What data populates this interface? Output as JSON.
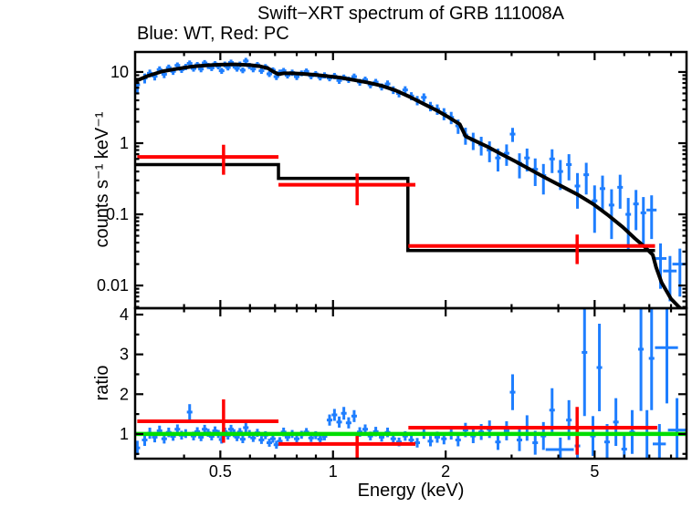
{
  "chart_data": {
    "type": "scatter",
    "title": "Swift−XRT spectrum of GRB 111008A",
    "subtitle": "Blue: WT, Red: PC",
    "xlabel": "Energy (keV)",
    "ylabel_top": "counts s⁻¹ keV⁻¹",
    "ylabel_bottom": "ratio",
    "legend": {
      "blue_series": "WT",
      "red_series": "PC"
    },
    "colors": {
      "wt": "#1e7eff",
      "pc": "#ff0000",
      "model": "#000000",
      "unity": "#00dd00",
      "frame": "#000000"
    },
    "x_axis": {
      "scale": "log",
      "min": 0.296,
      "max": 8.8,
      "major_ticks": [
        [
          0.5,
          "0.5"
        ],
        [
          1,
          "1"
        ],
        [
          2,
          "2"
        ],
        [
          5,
          "5"
        ]
      ],
      "minor_ticks": [
        0.4,
        0.6,
        0.7,
        0.8,
        0.9,
        3,
        4,
        6,
        7,
        8
      ]
    },
    "y_axis_top": {
      "scale": "log",
      "min": 0.0048,
      "max": 19.1,
      "major_ticks": [
        [
          10,
          "10"
        ],
        [
          1,
          "1"
        ],
        [
          0.1,
          "0.1"
        ],
        [
          0.01,
          "0.01"
        ]
      ]
    },
    "y_axis_bottom": {
      "scale": "linear",
      "min": 0.38,
      "max": 4.16,
      "major_ticks": [
        [
          1,
          "1"
        ],
        [
          2,
          "2"
        ],
        [
          3,
          "3"
        ],
        [
          4,
          "4"
        ]
      ],
      "minor_ticks": [
        0.5,
        1.5,
        2.5,
        3.5
      ]
    },
    "series": {
      "unity_ratio": 1.0,
      "wt_model": [
        [
          0.296,
          7.4
        ],
        [
          0.32,
          8.8
        ],
        [
          0.35,
          10.2
        ],
        [
          0.38,
          11.0
        ],
        [
          0.42,
          11.9
        ],
        [
          0.46,
          12.4
        ],
        [
          0.5,
          12.7
        ],
        [
          0.55,
          12.8
        ],
        [
          0.6,
          12.5
        ],
        [
          0.64,
          12.0
        ],
        [
          0.67,
          11.3
        ],
        [
          0.695,
          10.0
        ],
        [
          0.715,
          9.3
        ],
        [
          0.74,
          9.6
        ],
        [
          0.78,
          9.6
        ],
        [
          0.83,
          9.4
        ],
        [
          0.9,
          9.1
        ],
        [
          0.97,
          8.7
        ],
        [
          1.05,
          8.3
        ],
        [
          1.14,
          7.7
        ],
        [
          1.24,
          7.1
        ],
        [
          1.35,
          6.4
        ],
        [
          1.47,
          5.5
        ],
        [
          1.6,
          4.5
        ],
        [
          1.74,
          3.6
        ],
        [
          1.89,
          2.9
        ],
        [
          2.04,
          2.3
        ],
        [
          2.18,
          1.85
        ],
        [
          2.26,
          1.25
        ],
        [
          2.42,
          1.05
        ],
        [
          2.6,
          0.88
        ],
        [
          2.82,
          0.7
        ],
        [
          3.08,
          0.55
        ],
        [
          3.38,
          0.42
        ],
        [
          3.72,
          0.32
        ],
        [
          4.1,
          0.245
        ],
        [
          4.5,
          0.19
        ],
        [
          4.95,
          0.14
        ],
        [
          5.45,
          0.096
        ],
        [
          5.95,
          0.066
        ],
        [
          6.4,
          0.046
        ],
        [
          6.8,
          0.035
        ],
        [
          7.15,
          0.027
        ],
        [
          7.3,
          0.018
        ],
        [
          7.55,
          0.011
        ],
        [
          8.0,
          0.0065
        ],
        [
          8.4,
          0.005
        ],
        [
          8.75,
          0.0042
        ]
      ],
      "pc_model_steps": [
        [
          0.296,
          0.5
        ],
        [
          0.715,
          0.32
        ],
        [
          1.585,
          0.031
        ],
        [
          7.25,
          0.031
        ]
      ],
      "pc_spectrum": [
        [
          0.51,
          0.64,
          0.36,
          0.95,
          0.3,
          0.715
        ],
        [
          1.16,
          0.26,
          0.134,
          0.375,
          0.715,
          1.66
        ],
        [
          4.49,
          0.036,
          0.02,
          0.052,
          1.59,
          7.25
        ]
      ],
      "pc_ratio": [
        [
          0.51,
          1.32,
          0.78,
          1.87,
          0.3,
          0.715
        ],
        [
          1.16,
          0.75,
          0.4,
          1.0,
          0.715,
          1.66
        ],
        [
          4.49,
          1.16,
          0.48,
          1.68,
          1.59,
          7.35
        ]
      ],
      "wt_spectrum": [
        [
          0.3,
          6.6,
          1.6
        ],
        [
          0.314,
          8.2,
          1.3
        ],
        [
          0.324,
          9.6,
          1.2
        ],
        [
          0.334,
          8.7,
          1.1
        ],
        [
          0.344,
          10.8,
          1.2
        ],
        [
          0.354,
          9.3,
          1.1
        ],
        [
          0.364,
          11.5,
          1.2
        ],
        [
          0.374,
          10.2,
          1.1
        ],
        [
          0.384,
          12.4,
          1.2
        ],
        [
          0.394,
          10.8,
          1.1
        ],
        [
          0.404,
          11.8,
          1.2
        ],
        [
          0.414,
          13.2,
          1.3
        ],
        [
          0.424,
          11.2,
          1.1
        ],
        [
          0.434,
          12.6,
          1.2
        ],
        [
          0.444,
          11.0,
          1.1
        ],
        [
          0.454,
          13.4,
          1.3
        ],
        [
          0.464,
          12.2,
          1.2
        ],
        [
          0.474,
          11.4,
          1.1
        ],
        [
          0.484,
          13.0,
          1.2
        ],
        [
          0.494,
          12.0,
          1.1
        ],
        [
          0.504,
          10.4,
          1.0
        ],
        [
          0.514,
          12.8,
          1.2
        ],
        [
          0.524,
          11.6,
          1.1
        ],
        [
          0.534,
          13.6,
          1.3
        ],
        [
          0.544,
          12.4,
          1.2
        ],
        [
          0.554,
          11.2,
          1.1
        ],
        [
          0.564,
          12.8,
          1.2
        ],
        [
          0.574,
          10.6,
          1.0
        ],
        [
          0.585,
          14.3,
          1.5
        ],
        [
          0.598,
          12.2,
          1.2
        ],
        [
          0.612,
          11.0,
          1.1
        ],
        [
          0.628,
          12.6,
          1.2
        ],
        [
          0.644,
          10.4,
          1.0
        ],
        [
          0.66,
          11.8,
          1.1
        ],
        [
          0.676,
          9.4,
          0.9
        ],
        [
          0.691,
          10.6,
          1.0
        ],
        [
          0.706,
          8.6,
          0.9
        ],
        [
          0.721,
          9.8,
          1.0
        ],
        [
          0.738,
          10.4,
          1.0
        ],
        [
          0.756,
          9.0,
          0.9
        ],
        [
          0.778,
          9.8,
          1.0
        ],
        [
          0.8,
          8.6,
          0.9
        ],
        [
          0.824,
          9.6,
          0.9
        ],
        [
          0.849,
          10.2,
          1.0
        ],
        [
          0.874,
          8.8,
          0.9
        ],
        [
          0.899,
          9.4,
          0.9
        ],
        [
          0.924,
          8.4,
          0.8
        ],
        [
          0.949,
          9.0,
          0.9
        ],
        [
          0.979,
          8.2,
          0.8
        ],
        [
          1.009,
          8.8,
          0.9
        ],
        [
          1.039,
          7.6,
          0.8
        ],
        [
          1.069,
          8.4,
          0.8
        ],
        [
          1.101,
          7.8,
          0.8
        ],
        [
          1.139,
          8.6,
          0.9
        ],
        [
          1.179,
          7.2,
          0.8
        ],
        [
          1.219,
          7.8,
          0.8
        ],
        [
          1.259,
          6.6,
          0.7
        ],
        [
          1.301,
          7.2,
          0.8
        ],
        [
          1.349,
          6.2,
          0.7
        ],
        [
          1.399,
          6.8,
          0.8
        ],
        [
          1.449,
          5.6,
          0.7
        ],
        [
          1.501,
          5.0,
          0.6
        ],
        [
          1.559,
          5.6,
          0.7
        ],
        [
          1.619,
          4.6,
          0.6
        ],
        [
          1.679,
          4.0,
          0.6
        ],
        [
          1.749,
          4.4,
          0.6
        ],
        [
          1.821,
          3.3,
          0.5
        ],
        [
          1.899,
          3.0,
          0.5
        ],
        [
          1.979,
          2.6,
          0.5
        ],
        [
          2.069,
          2.3,
          0.45
        ],
        [
          2.159,
          1.75,
          0.4
        ],
        [
          2.259,
          1.3,
          0.35
        ],
        [
          2.369,
          1.1,
          0.3
        ],
        [
          2.489,
          0.95,
          0.28
        ],
        [
          2.619,
          0.8,
          0.26
        ],
        [
          2.759,
          0.62,
          0.22
        ],
        [
          2.909,
          0.72,
          0.24
        ],
        [
          3.019,
          1.34,
          0.3
        ],
        [
          3.149,
          0.52,
          0.2
        ],
        [
          3.299,
          0.62,
          0.22
        ],
        [
          3.469,
          0.43,
          0.18
        ],
        [
          3.649,
          0.35,
          0.16
        ],
        [
          3.849,
          0.6,
          0.22
        ],
        [
          4.049,
          0.4,
          0.18
        ],
        [
          4.269,
          0.5,
          0.2
        ],
        [
          4.499,
          0.25,
          0.13
        ],
        [
          4.749,
          0.36,
          0.17
        ],
        [
          4.999,
          0.155,
          0.1
        ],
        [
          5.249,
          0.23,
          0.12
        ],
        [
          5.549,
          0.135,
          0.09
        ],
        [
          5.849,
          0.24,
          0.12
        ],
        [
          6.149,
          0.1,
          0.07
        ],
        [
          6.449,
          0.14,
          0.08
        ],
        [
          6.749,
          0.105,
          0.07
        ],
        [
          7.099,
          0.115,
          0.07,
          0.22
        ],
        [
          7.499,
          0.024,
          0.015,
          0.28
        ],
        [
          7.949,
          0.016,
          0.01,
          0.33
        ],
        [
          8.449,
          0.02,
          0.013,
          0.38
        ]
      ],
      "wt_ratio": [
        [
          0.3,
          0.65,
          0.18
        ],
        [
          0.314,
          0.85,
          0.15
        ],
        [
          0.324,
          1.02,
          0.14
        ],
        [
          0.334,
          0.92,
          0.13
        ],
        [
          0.344,
          1.08,
          0.13
        ],
        [
          0.354,
          0.88,
          0.12
        ],
        [
          0.364,
          1.04,
          0.12
        ],
        [
          0.374,
          0.94,
          0.11
        ],
        [
          0.384,
          1.12,
          0.12
        ],
        [
          0.394,
          0.97,
          0.11
        ],
        [
          0.404,
          1.01,
          0.11
        ],
        [
          0.414,
          1.55,
          0.2
        ],
        [
          0.424,
          0.95,
          0.11
        ],
        [
          0.434,
          1.06,
          0.11
        ],
        [
          0.444,
          0.92,
          0.1
        ],
        [
          0.454,
          1.12,
          0.11
        ],
        [
          0.464,
          1.03,
          0.1
        ],
        [
          0.474,
          0.94,
          0.1
        ],
        [
          0.484,
          1.08,
          0.11
        ],
        [
          0.494,
          1.0,
          0.1
        ],
        [
          0.504,
          0.86,
          0.1
        ],
        [
          0.514,
          1.06,
          0.1
        ],
        [
          0.524,
          0.96,
          0.1
        ],
        [
          0.534,
          1.12,
          0.11
        ],
        [
          0.544,
          1.02,
          0.1
        ],
        [
          0.554,
          0.92,
          0.1
        ],
        [
          0.564,
          1.05,
          0.1
        ],
        [
          0.574,
          0.87,
          0.1
        ],
        [
          0.585,
          1.16,
          0.12
        ],
        [
          0.598,
          1.0,
          0.1
        ],
        [
          0.612,
          0.9,
          0.1
        ],
        [
          0.628,
          1.03,
          0.1
        ],
        [
          0.644,
          0.85,
          0.1
        ],
        [
          0.66,
          0.97,
          0.1
        ],
        [
          0.676,
          0.78,
          0.1
        ],
        [
          0.691,
          0.88,
          0.1
        ],
        [
          0.706,
          0.73,
          0.1
        ],
        [
          0.721,
          0.82,
          0.1
        ],
        [
          0.738,
          1.05,
          0.11
        ],
        [
          0.756,
          0.92,
          0.1
        ],
        [
          0.778,
          1.0,
          0.1
        ],
        [
          0.8,
          0.88,
          0.1
        ],
        [
          0.824,
          0.98,
          0.1
        ],
        [
          0.849,
          1.05,
          0.1
        ],
        [
          0.874,
          0.9,
          0.1
        ],
        [
          0.899,
          0.97,
          0.1
        ],
        [
          0.924,
          0.87,
          0.1
        ],
        [
          0.949,
          0.94,
          0.1
        ],
        [
          0.979,
          1.35,
          0.14
        ],
        [
          1.009,
          1.48,
          0.15
        ],
        [
          1.039,
          1.3,
          0.14
        ],
        [
          1.069,
          1.52,
          0.16
        ],
        [
          1.101,
          1.28,
          0.14
        ],
        [
          1.139,
          1.45,
          0.15
        ],
        [
          1.179,
          1.05,
          0.12
        ],
        [
          1.219,
          1.12,
          0.12
        ],
        [
          1.259,
          0.95,
          0.11
        ],
        [
          1.301,
          1.06,
          0.12
        ],
        [
          1.349,
          0.92,
          0.11
        ],
        [
          1.399,
          1.04,
          0.12
        ],
        [
          1.449,
          0.88,
          0.11
        ],
        [
          1.501,
          0.8,
          0.11
        ],
        [
          1.559,
          0.95,
          0.12
        ],
        [
          1.619,
          0.85,
          0.12
        ],
        [
          1.679,
          0.78,
          0.12
        ],
        [
          1.749,
          1.02,
          0.14
        ],
        [
          1.821,
          0.82,
          0.13
        ],
        [
          1.899,
          0.92,
          0.14
        ],
        [
          1.979,
          0.88,
          0.14
        ],
        [
          2.069,
          1.02,
          0.16
        ],
        [
          2.159,
          0.85,
          0.16
        ],
        [
          2.259,
          1.1,
          0.18
        ],
        [
          2.369,
          0.95,
          0.18
        ],
        [
          2.489,
          1.05,
          0.2
        ],
        [
          2.619,
          1.12,
          0.22
        ],
        [
          2.759,
          0.8,
          0.2
        ],
        [
          2.909,
          1.08,
          0.24
        ],
        [
          3.019,
          2.05,
          0.45
        ],
        [
          3.149,
          0.85,
          0.28
        ],
        [
          3.299,
          1.15,
          0.32
        ],
        [
          3.469,
          0.78,
          0.3
        ],
        [
          3.649,
          0.95,
          0.35
        ],
        [
          3.849,
          1.6,
          0.55
        ],
        [
          4.049,
          0.61,
          0.3,
          0.35
        ],
        [
          4.269,
          1.35,
          0.5
        ],
        [
          4.499,
          0.7,
          0.4
        ],
        [
          4.699,
          3.05,
          1.6
        ],
        [
          4.949,
          0.95,
          0.5
        ],
        [
          5.149,
          2.67,
          1.1
        ],
        [
          5.399,
          0.8,
          0.45
        ],
        [
          5.699,
          1.3,
          0.6
        ],
        [
          5.999,
          0.62,
          0.35
        ],
        [
          6.299,
          1.05,
          0.55
        ],
        [
          6.649,
          3.13,
          1.55
        ],
        [
          6.899,
          1.0,
          0.6
        ],
        [
          7.099,
          2.9,
          1.3
        ],
        [
          7.449,
          0.75,
          0.5,
          0.3
        ],
        [
          7.799,
          3.17,
          1.4,
          0.55
        ],
        [
          8.299,
          1.1,
          0.8,
          0.45
        ]
      ]
    }
  }
}
